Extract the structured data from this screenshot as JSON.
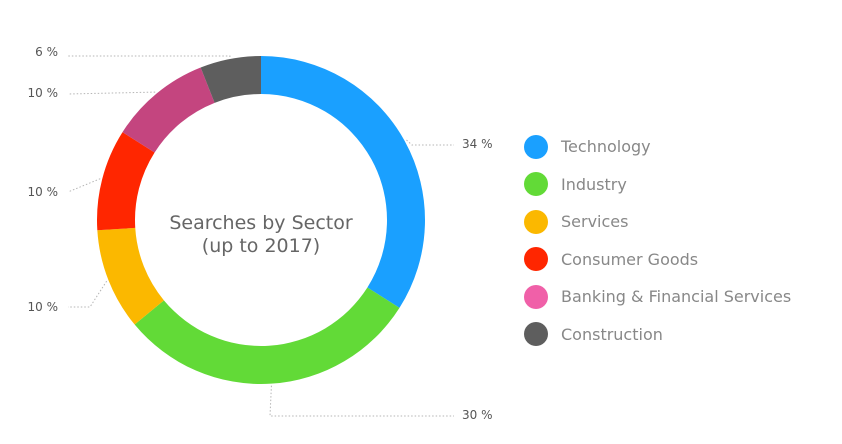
{
  "chart_data": {
    "type": "pie",
    "variant": "donut",
    "title_lines": [
      "Searches by Sector",
      "(up to 2017)"
    ],
    "slices": [
      {
        "name": "Technology",
        "value": 34,
        "label": "34 %",
        "color": "#1aa0ff"
      },
      {
        "name": "Industry",
        "value": 30,
        "label": "30 %",
        "color": "#62da37"
      },
      {
        "name": "Services",
        "value": 10,
        "label": "10 %",
        "color": "#fbb800"
      },
      {
        "name": "Consumer Goods",
        "value": 10,
        "label": "10 %",
        "color": "#ff2600"
      },
      {
        "name": "Banking & Financial Services",
        "value": 10,
        "label": "10 %",
        "color": "#c4457f"
      },
      {
        "name": "Construction",
        "value": 6,
        "label": "6 %",
        "color": "#5e5e5e"
      }
    ],
    "legend_swatch_colors": [
      "#1aa0ff",
      "#62da37",
      "#fbb800",
      "#ff2600",
      "#f060a8",
      "#5e5e5e"
    ],
    "legend_position": "right"
  }
}
